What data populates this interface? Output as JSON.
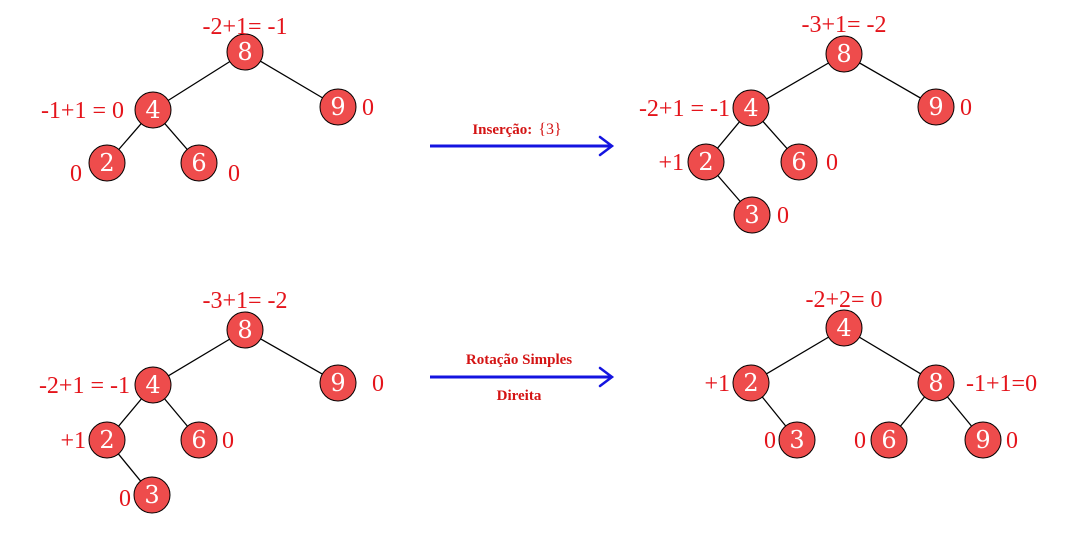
{
  "colors": {
    "node_fill": "#ee4c4c",
    "label": "#e4141b",
    "arrow": "#1414e0",
    "op_text": "#d41414",
    "edge": "#000000"
  },
  "trees": [
    {
      "id": "tree-1",
      "nodes": [
        {
          "id": "n8",
          "key": "8",
          "label": "-2+1= -1"
        },
        {
          "id": "n4",
          "key": "4",
          "label": "-1+1 = 0"
        },
        {
          "id": "n9",
          "key": "9",
          "label": "0"
        },
        {
          "id": "n2",
          "key": "2",
          "label": "0"
        },
        {
          "id": "n6",
          "key": "6",
          "label": "0"
        }
      ]
    },
    {
      "id": "tree-2",
      "nodes": [
        {
          "id": "n8",
          "key": "8",
          "label": "-3+1= -2"
        },
        {
          "id": "n4",
          "key": "4",
          "label": "-2+1 = -1"
        },
        {
          "id": "n9",
          "key": "9",
          "label": "0"
        },
        {
          "id": "n2",
          "key": "2",
          "label": "+1"
        },
        {
          "id": "n6",
          "key": "6",
          "label": "0"
        },
        {
          "id": "n3",
          "key": "3",
          "label": "0"
        }
      ]
    },
    {
      "id": "tree-3",
      "nodes": [
        {
          "id": "n8",
          "key": "8",
          "label": "-3+1= -2"
        },
        {
          "id": "n4",
          "key": "4",
          "label": "-2+1 = -1"
        },
        {
          "id": "n9",
          "key": "9",
          "label": "0"
        },
        {
          "id": "n2",
          "key": "2",
          "label": "+1"
        },
        {
          "id": "n6",
          "key": "6",
          "label": "0"
        },
        {
          "id": "n3",
          "key": "3",
          "label": "0"
        }
      ]
    },
    {
      "id": "tree-4",
      "nodes": [
        {
          "id": "n4",
          "key": "4",
          "label": "-2+2= 0"
        },
        {
          "id": "n2",
          "key": "2",
          "label": "+1"
        },
        {
          "id": "n8",
          "key": "8",
          "label": "-1+1=0"
        },
        {
          "id": "n3",
          "key": "3",
          "label": "0"
        },
        {
          "id": "n6",
          "key": "6",
          "label": "0"
        },
        {
          "id": "n9",
          "key": "9",
          "label": "0"
        }
      ]
    }
  ],
  "operations": [
    {
      "id": "insert",
      "bold": "Inserção:",
      "value": "{3}"
    },
    {
      "id": "rotate",
      "line1": "Rotação Simples",
      "line2": "Direita"
    }
  ]
}
